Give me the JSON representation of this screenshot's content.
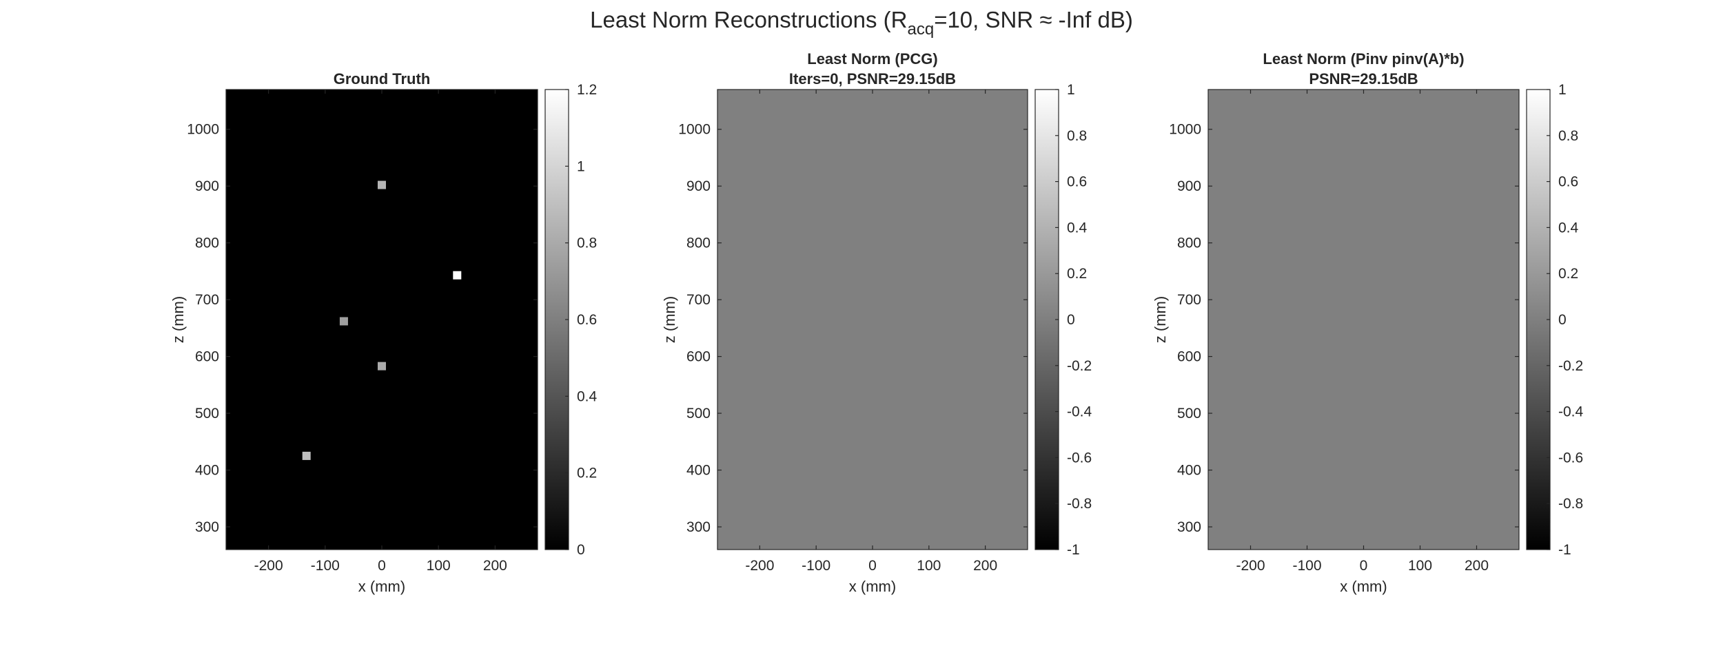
{
  "figure": {
    "title_main": "Least Norm Reconstructions (R",
    "title_sub": "acq",
    "title_rest": "=10, SNR ≈ -Inf dB)"
  },
  "chart_data": [
    {
      "type": "heatmap",
      "title": [
        "Ground Truth"
      ],
      "xlabel": "x (mm)",
      "ylabel": "z (mm)",
      "xlim": [
        -275,
        275
      ],
      "ylim": [
        260,
        1070
      ],
      "y_direction": "normal",
      "xticks": [
        -200,
        -100,
        0,
        100,
        200
      ],
      "yticks": [
        300,
        400,
        500,
        600,
        700,
        800,
        900,
        1000
      ],
      "background_value": 0,
      "points": [
        {
          "x": 0,
          "z": 902,
          "value": 0.85
        },
        {
          "x": 133,
          "z": 743,
          "value": 1.2
        },
        {
          "x": -67,
          "z": 662,
          "value": 0.75
        },
        {
          "x": 0,
          "z": 583,
          "value": 0.8
        },
        {
          "x": -133,
          "z": 425,
          "value": 0.9
        }
      ],
      "colormap": "gray",
      "colorbar": {
        "min": 0,
        "max": 1.2,
        "ticks": [
          0,
          0.2,
          0.4,
          0.6,
          0.8,
          1,
          1.2
        ]
      }
    },
    {
      "type": "heatmap",
      "title": [
        "Least Norm (PCG)",
        "Iters=0, PSNR=29.15dB"
      ],
      "xlabel": "x (mm)",
      "ylabel": "z (mm)",
      "xlim": [
        -275,
        275
      ],
      "ylim": [
        260,
        1070
      ],
      "y_direction": "normal",
      "xticks": [
        -200,
        -100,
        0,
        100,
        200
      ],
      "yticks": [
        300,
        400,
        500,
        600,
        700,
        800,
        900,
        1000
      ],
      "background_value": 0,
      "points": [],
      "colormap": "gray",
      "colorbar": {
        "min": -1,
        "max": 1,
        "ticks": [
          -1,
          -0.8,
          -0.6,
          -0.4,
          -0.2,
          0,
          0.2,
          0.4,
          0.6,
          0.8,
          1
        ]
      }
    },
    {
      "type": "heatmap",
      "title": [
        "Least Norm (Pinv pinv(A)*b)",
        "PSNR=29.15dB"
      ],
      "xlabel": "x (mm)",
      "ylabel": "z (mm)",
      "xlim": [
        -275,
        275
      ],
      "ylim": [
        260,
        1070
      ],
      "y_direction": "normal",
      "xticks": [
        -200,
        -100,
        0,
        100,
        200
      ],
      "yticks": [
        300,
        400,
        500,
        600,
        700,
        800,
        900,
        1000
      ],
      "background_value": 0,
      "points": [],
      "colormap": "gray",
      "colorbar": {
        "min": -1,
        "max": 1,
        "ticks": [
          -1,
          -0.8,
          -0.6,
          -0.4,
          -0.2,
          0,
          0.2,
          0.4,
          0.6,
          0.8,
          1
        ]
      }
    }
  ]
}
